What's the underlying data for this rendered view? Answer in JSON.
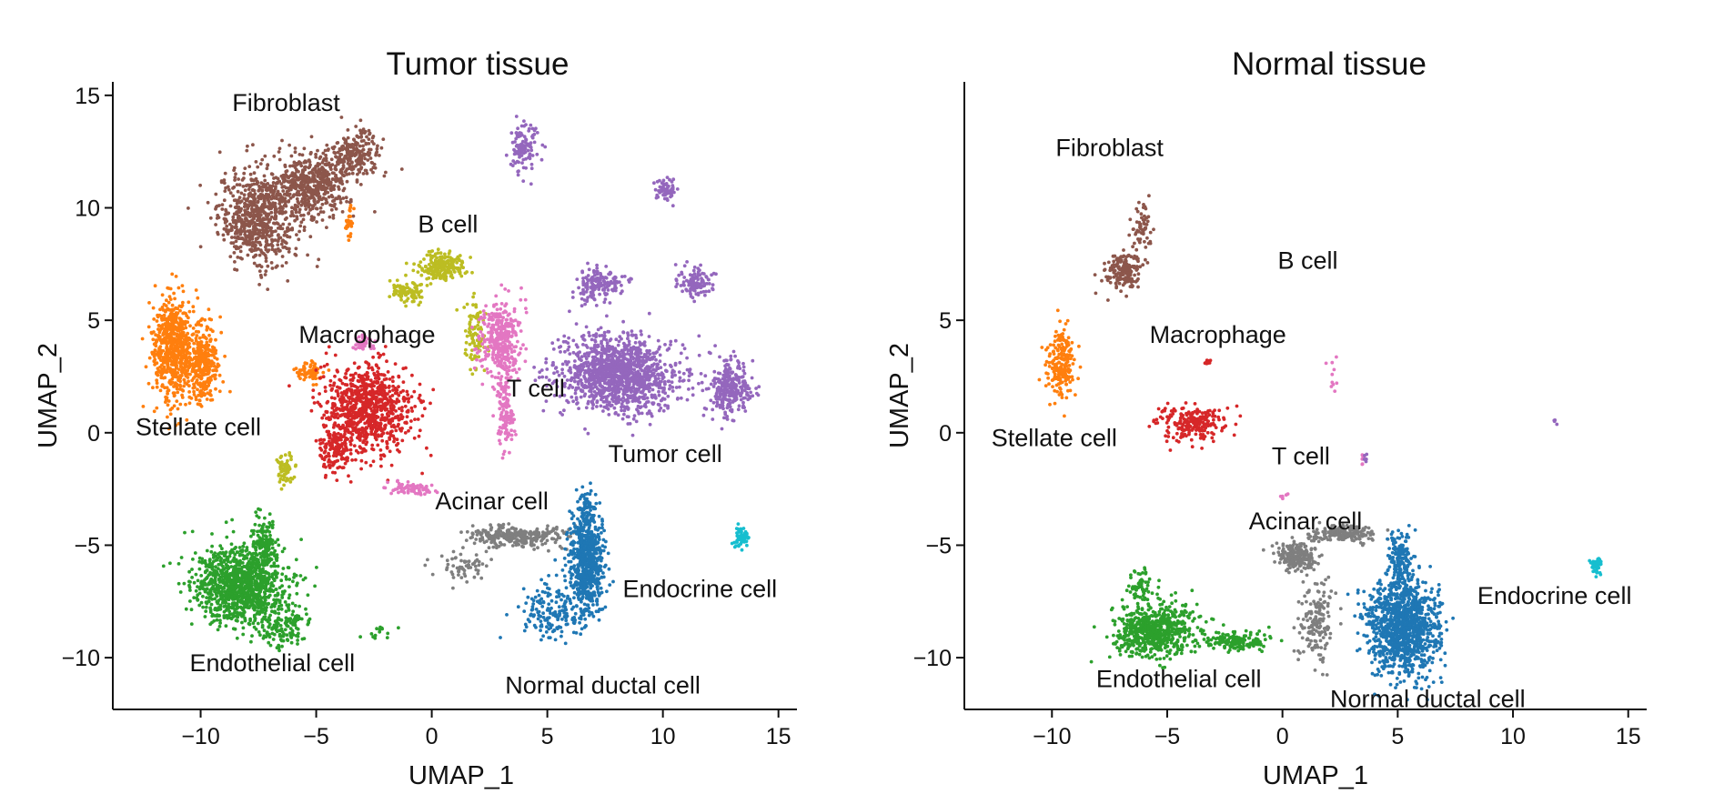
{
  "chart_data": [
    {
      "type": "scatter",
      "title": "Tumor tissue",
      "xlabel": "UMAP_1",
      "ylabel": "UMAP_2",
      "xlim": [
        -13.8,
        15.8
      ],
      "ylim": [
        -12.3,
        15.6
      ],
      "xticks": [
        -10,
        -5,
        0,
        5,
        10,
        15
      ],
      "yticks": [
        -10,
        -5,
        0,
        5,
        10,
        15
      ],
      "grid": false,
      "clusters": [
        {
          "name": "Fibroblast",
          "color": "#8c564b",
          "label": "Fibroblast",
          "label_at": [
            -6.3,
            14.3
          ],
          "blobs": [
            [
              -7.5,
              9.6,
              1.4,
              1.7,
              700
            ],
            [
              -5.2,
              11.0,
              1.3,
              1.1,
              500
            ],
            [
              -3.3,
              12.4,
              0.9,
              0.8,
              220
            ]
          ]
        },
        {
          "name": "Stellate cell",
          "color": "#ff7f0e",
          "label": "Stellate cell",
          "label_at": [
            -10.1,
            -0.1
          ],
          "blobs": [
            [
              -11.2,
              3.8,
              0.7,
              1.8,
              650
            ],
            [
              -9.9,
              3.0,
              0.6,
              1.4,
              350
            ],
            [
              -5.3,
              2.7,
              0.5,
              0.4,
              60
            ],
            [
              -3.6,
              9.3,
              0.15,
              0.6,
              30
            ]
          ]
        },
        {
          "name": "Macrophage",
          "color": "#d62728",
          "label": "Macrophage",
          "label_at": [
            -2.8,
            4.0
          ],
          "blobs": [
            [
              -2.8,
              1.1,
              1.6,
              1.5,
              900
            ],
            [
              -4.2,
              -0.8,
              0.5,
              0.8,
              120
            ]
          ]
        },
        {
          "name": "B cell",
          "color": "#bcbd22",
          "label": "B cell",
          "label_at": [
            0.7,
            8.9
          ],
          "blobs": [
            [
              0.4,
              7.4,
              0.8,
              0.5,
              220
            ],
            [
              -1.1,
              6.3,
              0.6,
              0.4,
              90
            ],
            [
              1.8,
              4.4,
              0.4,
              1.2,
              90
            ],
            [
              -6.3,
              -1.7,
              0.3,
              0.5,
              60
            ]
          ]
        },
        {
          "name": "T cell",
          "color": "#e377c2",
          "label": "T cell",
          "label_at": [
            4.5,
            1.6
          ],
          "blobs": [
            [
              3.0,
              4.1,
              0.7,
              1.4,
              380
            ],
            [
              3.2,
              0.8,
              0.3,
              1.3,
              120
            ],
            [
              -0.9,
              -2.5,
              0.9,
              0.25,
              70
            ],
            [
              -3.0,
              4.0,
              0.4,
              0.3,
              40
            ]
          ]
        },
        {
          "name": "Tumor cell",
          "color": "#9467bd",
          "label": "Tumor cell",
          "label_at": [
            10.1,
            -1.3
          ],
          "blobs": [
            [
              8.0,
              2.6,
              2.0,
              1.3,
              1300
            ],
            [
              12.9,
              2.0,
              0.7,
              1.0,
              280
            ],
            [
              7.2,
              6.6,
              0.8,
              0.6,
              160
            ],
            [
              11.4,
              6.7,
              0.6,
              0.5,
              120
            ],
            [
              4.0,
              12.7,
              0.5,
              0.9,
              110
            ],
            [
              10.1,
              10.8,
              0.3,
              0.4,
              70
            ]
          ]
        },
        {
          "name": "Acinar cell",
          "color": "#7f7f7f",
          "label": "Acinar cell",
          "label_at": [
            2.6,
            -3.4
          ],
          "blobs": [
            [
              3.7,
              -4.6,
              1.7,
              0.35,
              300
            ],
            [
              1.4,
              -6.0,
              0.9,
              0.6,
              60
            ]
          ]
        },
        {
          "name": "Normal ductal cell",
          "color": "#1f77b4",
          "label": "Normal ductal cell",
          "label_at": [
            7.4,
            -11.6
          ],
          "blobs": [
            [
              6.7,
              -5.8,
              0.6,
              1.9,
              700
            ],
            [
              5.2,
              -8.0,
              1.1,
              1.1,
              160
            ],
            [
              6.7,
              -3.3,
              0.3,
              0.7,
              60
            ]
          ]
        },
        {
          "name": "Endocrine cell",
          "color": "#17becf",
          "label": "Endocrine cell",
          "label_at": [
            11.6,
            -7.3
          ],
          "blobs": [
            [
              13.4,
              -4.6,
              0.3,
              0.4,
              60
            ]
          ]
        },
        {
          "name": "Endothelial cell",
          "color": "#2ca02c",
          "label": "Endothelial cell",
          "label_at": [
            -6.9,
            -10.6
          ],
          "blobs": [
            [
              -8.3,
              -6.8,
              1.6,
              1.3,
              1100
            ],
            [
              -7.3,
              -5.0,
              0.5,
              0.9,
              150
            ],
            [
              -6.5,
              -8.6,
              0.9,
              0.8,
              140
            ],
            [
              -2.2,
              -8.9,
              0.6,
              0.3,
              15
            ]
          ]
        }
      ]
    },
    {
      "type": "scatter",
      "title": "Normal tissue",
      "xlabel": "UMAP_1",
      "ylabel": "UMAP_2",
      "xlim": [
        -13.8,
        15.8
      ],
      "ylim": [
        -12.3,
        15.6
      ],
      "xticks": [
        -10,
        -5,
        0,
        5,
        10,
        15
      ],
      "yticks": [
        -10,
        -5,
        0,
        5
      ],
      "grid": false,
      "clusters": [
        {
          "name": "Fibroblast",
          "color": "#8c564b",
          "label": "Fibroblast",
          "label_at": [
            -7.5,
            12.3
          ],
          "blobs": [
            [
              -6.9,
              7.2,
              0.6,
              0.7,
              180
            ],
            [
              -6.1,
              9.2,
              0.4,
              0.8,
              60
            ]
          ]
        },
        {
          "name": "Stellate cell",
          "color": "#ff7f0e",
          "label": "Stellate cell",
          "label_at": [
            -9.9,
            -0.6
          ],
          "blobs": [
            [
              -9.6,
              3.1,
              0.5,
              1.2,
              200
            ]
          ]
        },
        {
          "name": "Macrophage",
          "color": "#d62728",
          "label": "Macrophage",
          "label_at": [
            -2.8,
            4.0
          ],
          "blobs": [
            [
              -4.0,
              0.4,
              1.2,
              0.6,
              230
            ],
            [
              -3.3,
              3.2,
              0.15,
              0.15,
              8
            ]
          ]
        },
        {
          "name": "B cell",
          "color": "#bcbd22",
          "label": "B cell",
          "label_at": [
            1.1,
            7.3
          ],
          "blobs": []
        },
        {
          "name": "T cell",
          "color": "#e377c2",
          "label": "T cell",
          "label_at": [
            0.8,
            -1.4
          ],
          "blobs": [
            [
              0.0,
              -2.8,
              0.15,
              0.1,
              6
            ],
            [
              2.2,
              2.8,
              0.2,
              1.0,
              10
            ],
            [
              3.5,
              -1.2,
              0.1,
              0.2,
              6
            ]
          ]
        },
        {
          "name": "Tumor cell",
          "color": "#9467bd",
          "label": "",
          "label_at": [
            0,
            0
          ],
          "blobs": [
            [
              11.8,
              0.5,
              0.1,
              0.1,
              4
            ],
            [
              3.6,
              -1.2,
              0.1,
              0.2,
              5
            ]
          ]
        },
        {
          "name": "Acinar cell",
          "color": "#7f7f7f",
          "label": "Acinar cell",
          "label_at": [
            1.0,
            -4.3
          ],
          "blobs": [
            [
              0.6,
              -5.5,
              0.7,
              0.5,
              220
            ],
            [
              2.7,
              -4.5,
              1.3,
              0.3,
              160
            ],
            [
              1.5,
              -8.5,
              0.6,
              1.5,
              160
            ]
          ]
        },
        {
          "name": "Normal ductal cell",
          "color": "#1f77b4",
          "label": "Normal ductal cell",
          "label_at": [
            6.3,
            -12.2
          ],
          "blobs": [
            [
              5.2,
              -8.6,
              1.2,
              1.7,
              1200
            ],
            [
              5.1,
              -5.6,
              0.4,
              0.9,
              150
            ]
          ]
        },
        {
          "name": "Endocrine cell",
          "color": "#17becf",
          "label": "Endocrine cell",
          "label_at": [
            11.8,
            -7.6
          ],
          "blobs": [
            [
              13.6,
              -5.9,
              0.2,
              0.3,
              55
            ]
          ]
        },
        {
          "name": "Endothelial cell",
          "color": "#2ca02c",
          "label": "Endothelial cell",
          "label_at": [
            -4.5,
            -11.3
          ],
          "blobs": [
            [
              -5.5,
              -8.8,
              1.4,
              0.9,
              650
            ],
            [
              -2.0,
              -9.3,
              1.1,
              0.3,
              160
            ],
            [
              -6.2,
              -6.8,
              0.4,
              0.5,
              60
            ]
          ]
        }
      ]
    }
  ]
}
